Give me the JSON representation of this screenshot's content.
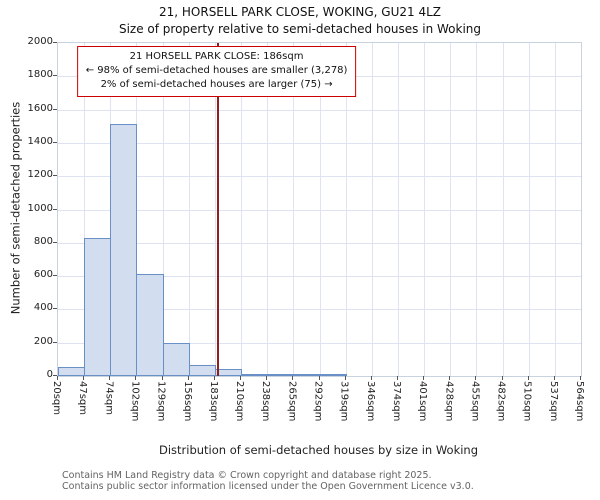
{
  "title": "21, HORSELL PARK CLOSE, WOKING, GU21 4LZ",
  "subtitle": "Size of property relative to semi-detached houses in Woking",
  "annotation": {
    "line1": "21 HORSELL PARK CLOSE: 186sqm",
    "line2": "← 98% of semi-detached houses are smaller (3,278)",
    "line3": "2% of semi-detached houses are larger (75) →"
  },
  "footer": {
    "line1": "Contains HM Land Registry data © Crown copyright and database right 2025.",
    "line2": "Contains public sector information licensed under the Open Government Licence v3.0."
  },
  "chart_data": {
    "type": "bar",
    "title": "21, HORSELL PARK CLOSE, WOKING, GU21 4LZ",
    "subtitle": "Size of property relative to semi-detached houses in Woking",
    "xlabel": "Distribution of semi-detached houses by size in Woking",
    "ylabel": "Number of semi-detached properties",
    "xlim": [
      20,
      564
    ],
    "ylim": [
      0,
      2000
    ],
    "y_ticks": [
      0,
      200,
      400,
      600,
      800,
      1000,
      1200,
      1400,
      1600,
      1800,
      2000
    ],
    "x_tick_labels": [
      "20sqm",
      "47sqm",
      "74sqm",
      "102sqm",
      "129sqm",
      "156sqm",
      "183sqm",
      "210sqm",
      "238sqm",
      "265sqm",
      "292sqm",
      "319sqm",
      "346sqm",
      "374sqm",
      "401sqm",
      "428sqm",
      "455sqm",
      "482sqm",
      "510sqm",
      "537sqm",
      "564sqm"
    ],
    "bins": {
      "start": 20,
      "width": 27.2,
      "count": 20
    },
    "values": [
      55,
      830,
      1515,
      610,
      200,
      65,
      40,
      15,
      10,
      8,
      5,
      0,
      0,
      0,
      0,
      0,
      0,
      0,
      0,
      0
    ],
    "marker": {
      "value": 186,
      "label": "186sqm",
      "smaller_pct": 98,
      "smaller_count": 3278,
      "larger_pct": 2,
      "larger_count": 75
    },
    "grid": true,
    "legend": null,
    "colors": {
      "bar_fill": "#d2deef",
      "bar_border": "#6890c6",
      "grid": "#dde3f0",
      "marker_line": "#8e2020",
      "annotation_border": "#cc0000"
    }
  }
}
